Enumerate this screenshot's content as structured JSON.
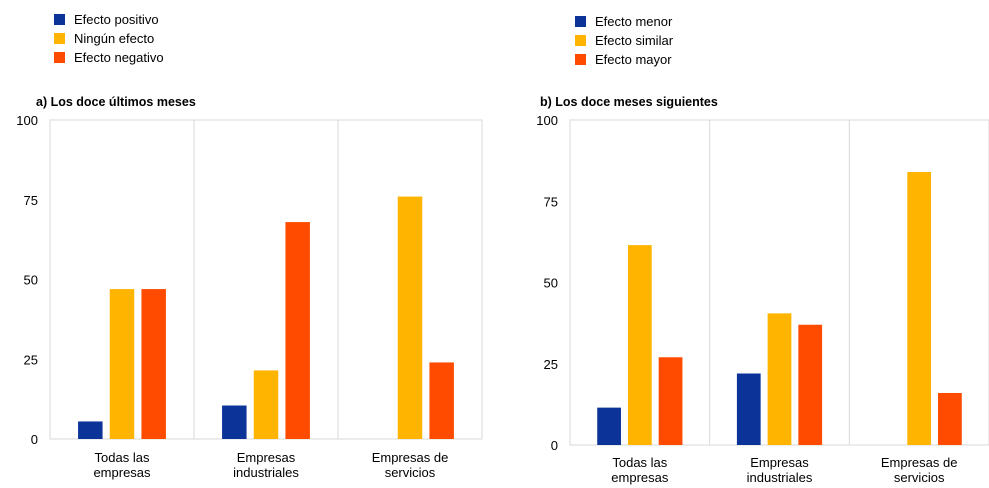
{
  "colors": {
    "blue": "#0c3397",
    "yellow": "#ffb400",
    "orange": "#ff4b00",
    "grid": "#d9d9d9",
    "axis": "#bfbfbf"
  },
  "chart_data": [
    {
      "type": "bar",
      "title": "a) Los doce últimos meses",
      "categories": [
        [
          "Todas las",
          "empresas"
        ],
        [
          "Empresas",
          "industriales"
        ],
        [
          "Empresas de",
          "servicios"
        ]
      ],
      "series": [
        {
          "name": "Efecto positivo",
          "values": [
            5.5,
            10.5,
            0
          ]
        },
        {
          "name": "Ningún efecto",
          "values": [
            47,
            21.5,
            76
          ]
        },
        {
          "name": "Efecto negativo",
          "values": [
            47,
            68,
            24
          ]
        }
      ],
      "ylim": [
        0,
        100
      ],
      "yticks": [
        0,
        25,
        50,
        75,
        100
      ],
      "legend": "top-left",
      "grid": "vertical separators"
    },
    {
      "type": "bar",
      "title": "b) Los doce meses siguientes",
      "categories": [
        [
          "Todas las",
          "empresas"
        ],
        [
          "Empresas",
          "industriales"
        ],
        [
          "Empresas de",
          "servicios"
        ]
      ],
      "series": [
        {
          "name": "Efecto menor",
          "values": [
            11.5,
            22,
            0
          ]
        },
        {
          "name": "Efecto similar",
          "values": [
            61.5,
            40.5,
            84
          ]
        },
        {
          "name": "Efecto mayor",
          "values": [
            27,
            37,
            16
          ]
        }
      ],
      "ylim": [
        0,
        100
      ],
      "yticks": [
        0,
        25,
        50,
        75,
        100
      ],
      "legend": "top-left",
      "grid": "vertical separators"
    }
  ]
}
